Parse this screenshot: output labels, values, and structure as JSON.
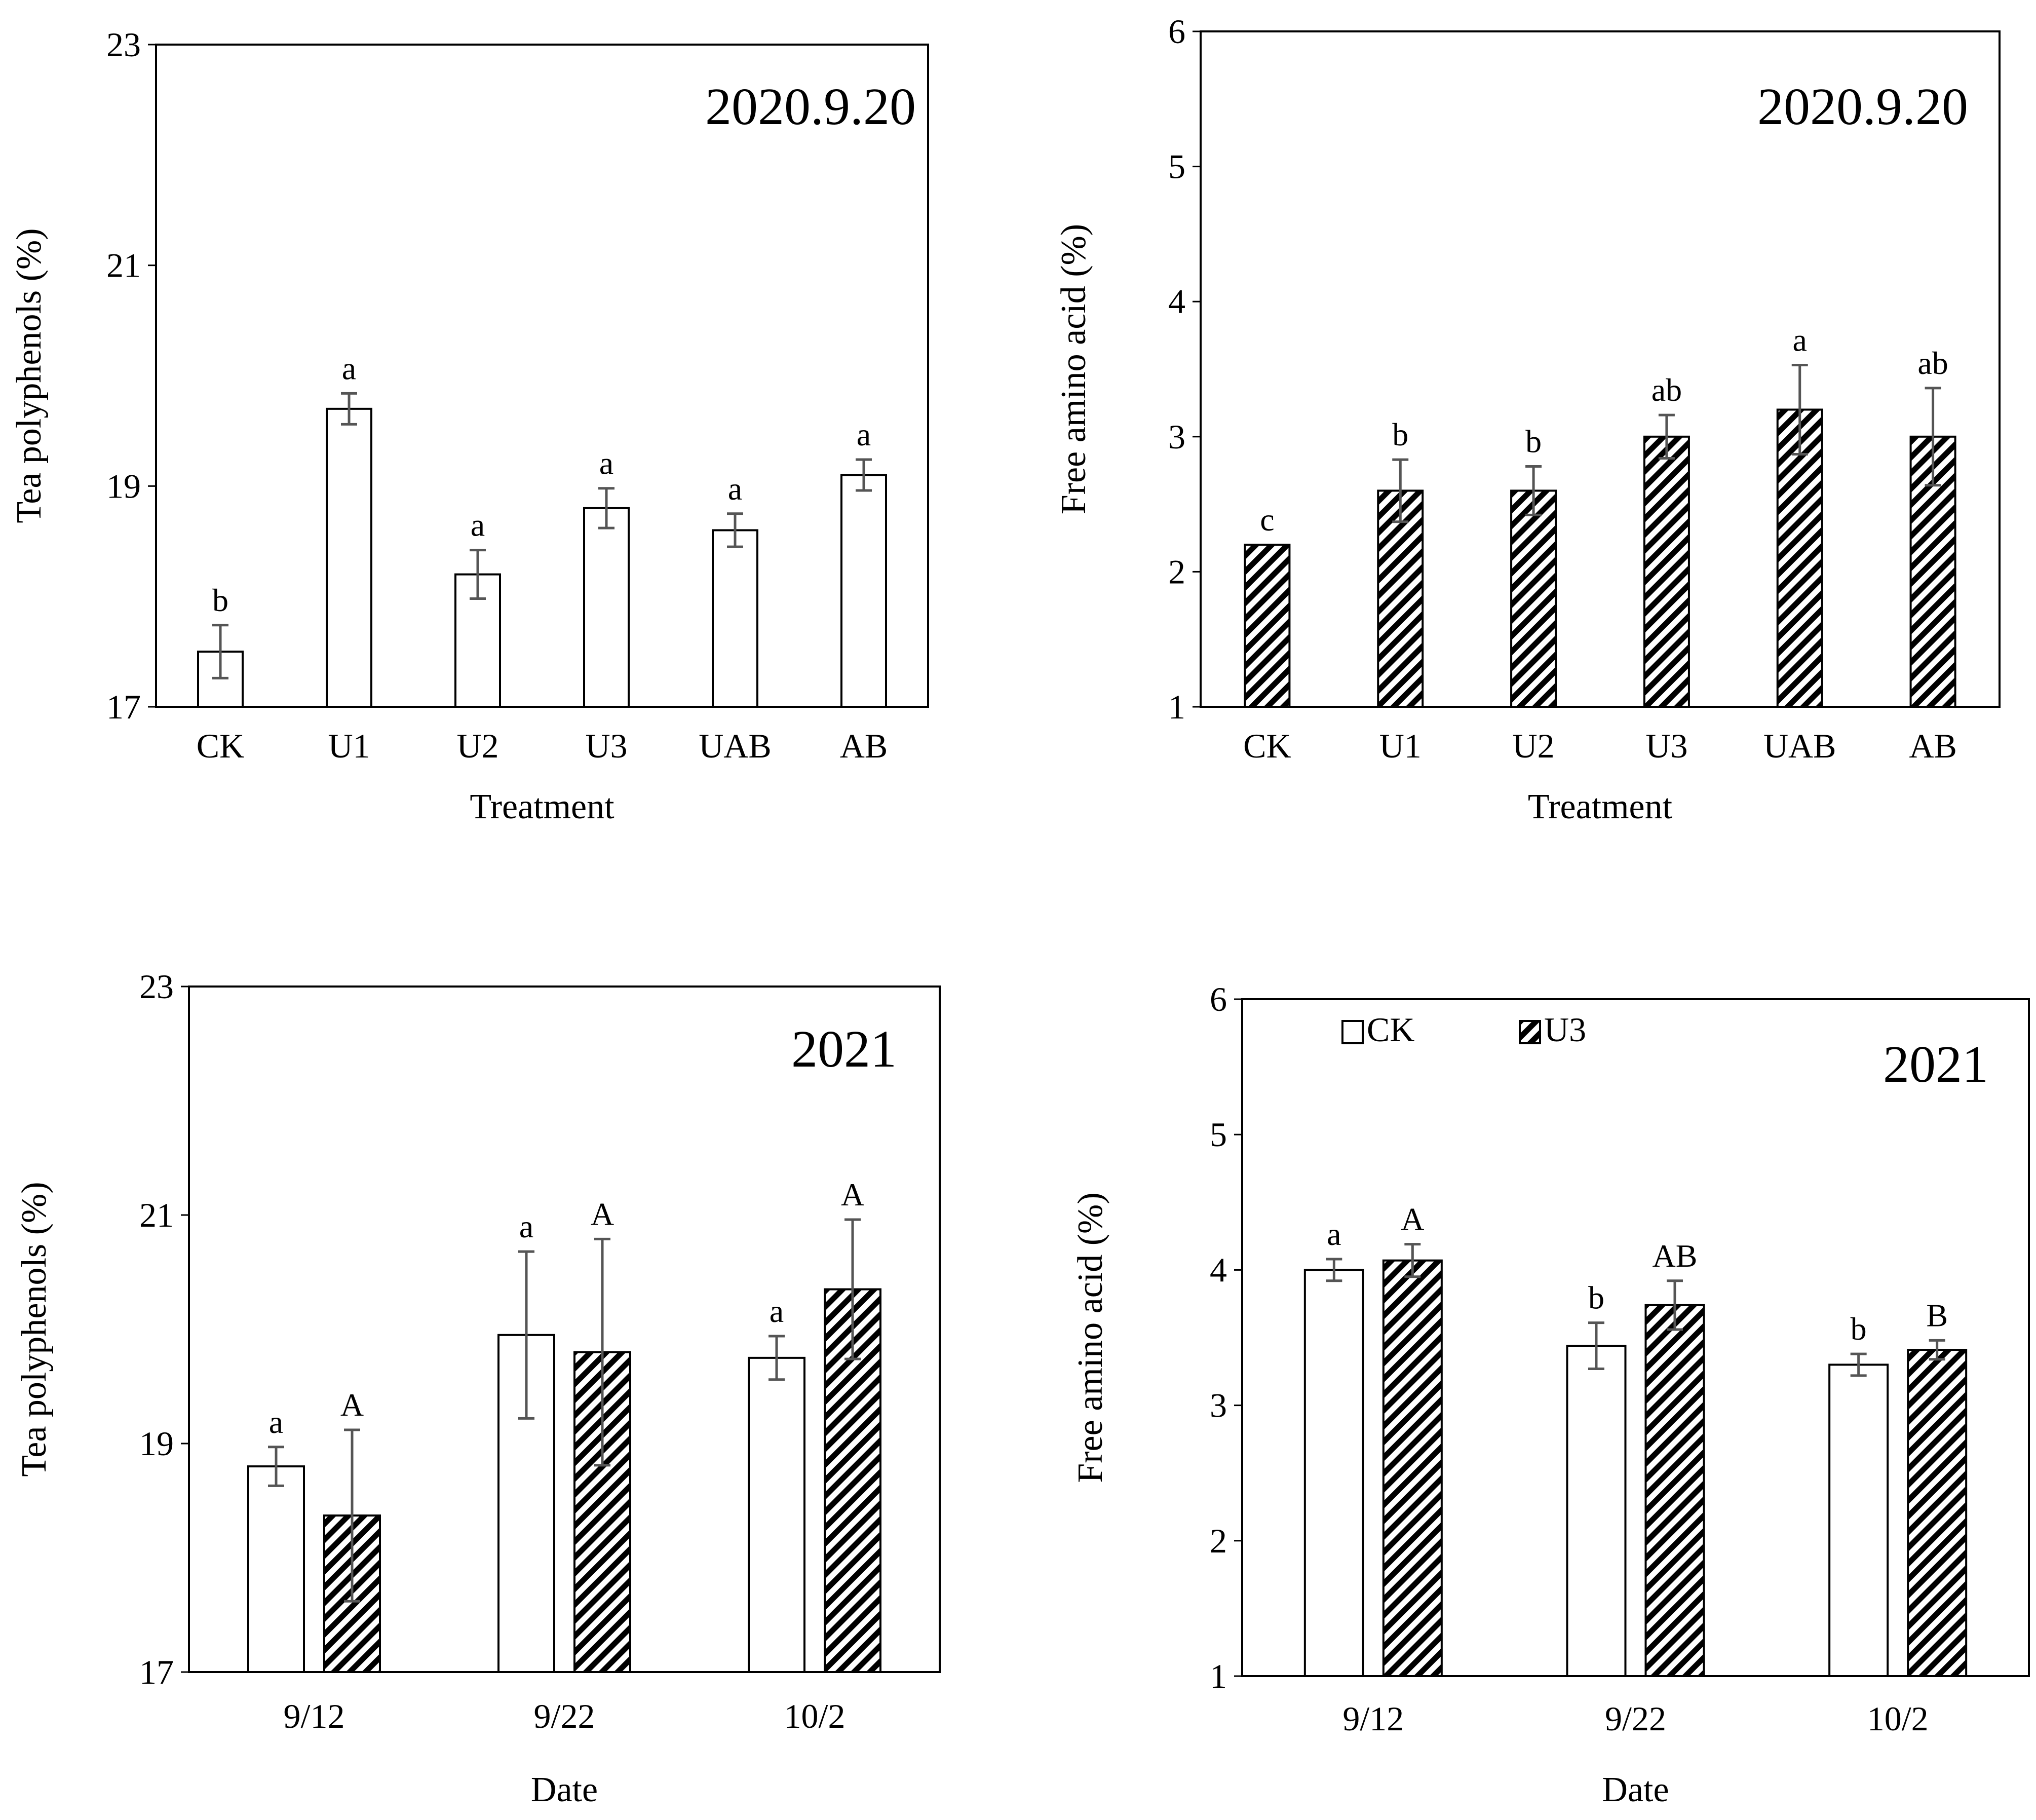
{
  "chart_data": [
    {
      "type": "bar",
      "badge": "2020.9.20",
      "xlabel": "Treatment",
      "ylabel": "Tea polyphenols (%)",
      "ylim": [
        17,
        23
      ],
      "yticks": [
        "17",
        "19",
        "21",
        "23"
      ],
      "categories": [
        "CK",
        "U1",
        "U2",
        "U3",
        "UAB",
        "AB"
      ],
      "series": [
        {
          "pattern": "open",
          "values": [
            17.5,
            19.7,
            18.2,
            18.8,
            18.6,
            19.1
          ],
          "errors": [
            0.24,
            0.14,
            0.22,
            0.18,
            0.15,
            0.14
          ],
          "labels": [
            "b",
            "a",
            "a",
            "a",
            "a",
            "a"
          ]
        }
      ]
    },
    {
      "type": "bar",
      "badge": "2020.9.20",
      "xlabel": "Treatment",
      "ylabel": "Free amino acid (%)",
      "ylim": [
        1,
        6
      ],
      "yticks": [
        "1",
        "2",
        "3",
        "4",
        "5",
        "6"
      ],
      "categories": [
        "CK",
        "U1",
        "U2",
        "U3",
        "UAB",
        "AB"
      ],
      "series": [
        {
          "pattern": "hatched",
          "values": [
            2.2,
            2.6,
            2.6,
            3.0,
            3.2,
            3.0
          ],
          "errors": [
            0.0,
            0.23,
            0.18,
            0.16,
            0.33,
            0.36
          ],
          "labels": [
            "c",
            "b",
            "b",
            "ab",
            "a",
            "ab"
          ]
        }
      ]
    },
    {
      "type": "bar",
      "badge": "2021",
      "xlabel": "Date",
      "ylabel": "Tea polyphenols (%)",
      "ylim": [
        17,
        23
      ],
      "yticks": [
        "17",
        "19",
        "21",
        "23"
      ],
      "categories": [
        "9/12",
        "9/22",
        "10/2"
      ],
      "series": [
        {
          "pattern": "open",
          "values": [
            18.8,
            19.95,
            19.75
          ],
          "errors": [
            0.17,
            0.73,
            0.19
          ],
          "labels": [
            "a",
            "a",
            "a"
          ]
        },
        {
          "pattern": "hatched",
          "values": [
            18.37,
            19.8,
            20.35
          ],
          "errors": [
            0.75,
            0.99,
            0.61
          ],
          "labels": [
            "A",
            "A",
            "A"
          ]
        }
      ]
    },
    {
      "type": "bar",
      "badge": "2021",
      "xlabel": "Date",
      "ylabel": "Free amino acid (%)",
      "ylim": [
        1,
        6
      ],
      "yticks": [
        "1",
        "2",
        "3",
        "4",
        "5",
        "6"
      ],
      "categories": [
        "9/12",
        "9/22",
        "10/2"
      ],
      "legend": {
        "position": "top-left",
        "entries": [
          {
            "name": "CK",
            "pattern": "open"
          },
          {
            "name": "U3",
            "pattern": "hatched"
          }
        ]
      },
      "series": [
        {
          "name": "CK",
          "pattern": "open",
          "values": [
            4.0,
            3.44,
            3.3
          ],
          "errors": [
            0.08,
            0.17,
            0.08
          ],
          "labels": [
            "a",
            "b",
            "b"
          ]
        },
        {
          "name": "U3",
          "pattern": "hatched",
          "values": [
            4.07,
            3.74,
            3.41
          ],
          "errors": [
            0.12,
            0.18,
            0.07
          ],
          "labels": [
            "A",
            "AB",
            "B"
          ]
        }
      ]
    }
  ]
}
